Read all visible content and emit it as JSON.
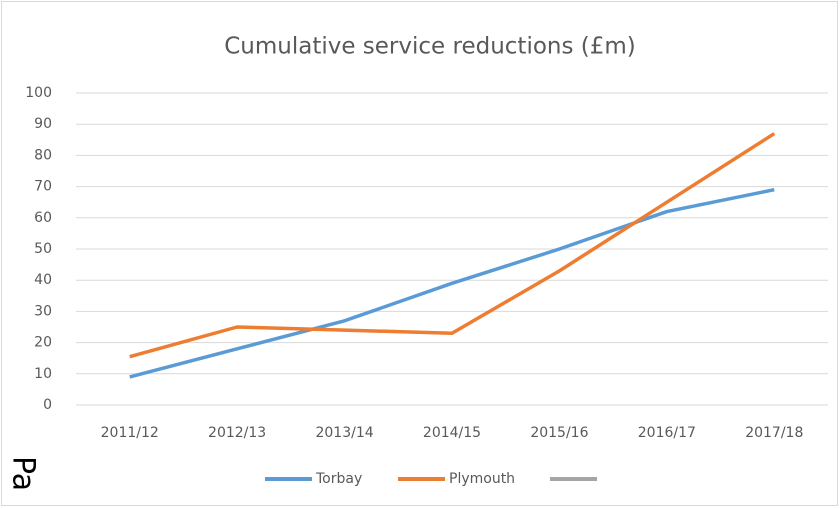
{
  "chart_data": {
    "type": "line",
    "title": "Cumulative service reductions (£m)",
    "categories": [
      "2011/12",
      "2012/13",
      "2013/14",
      "2014/15",
      "2015/16",
      "2016/17",
      "2017/18"
    ],
    "series": [
      {
        "name": "Torbay",
        "color": "#5b9bd5",
        "values": [
          9,
          18,
          27,
          39,
          50,
          62,
          69
        ]
      },
      {
        "name": "Plymouth",
        "color": "#ed7d31",
        "values": [
          15.5,
          25,
          24,
          23,
          43,
          65,
          87
        ]
      }
    ],
    "ylim": [
      0,
      100
    ],
    "yticks": [
      0,
      10,
      20,
      30,
      40,
      50,
      60,
      70,
      80,
      90,
      100
    ],
    "grid": true,
    "legend": "bottom"
  },
  "side_text": "Pa"
}
